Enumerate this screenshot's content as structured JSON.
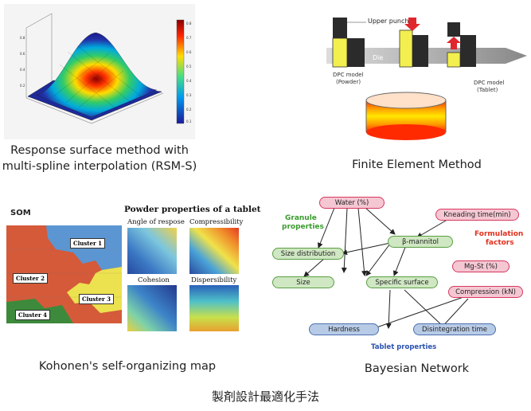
{
  "panels": {
    "rsm": {
      "caption_line1": "Response surface method with",
      "caption_line2": "multi-spline interpolation (RSM-S)"
    },
    "fem": {
      "caption": "Finite Element Method",
      "upper_punch": "Upper punch",
      "die": "Die",
      "dpc_powder_1": "DPC model",
      "dpc_powder_2": "(Powder)",
      "dpc_tablet_1": "DPC model",
      "dpc_tablet_2": "(Tablet)"
    },
    "som": {
      "title": "SOM",
      "caption": "Kohonen's self-organizing map",
      "clusters": [
        "Cluster 1",
        "Cluster 2",
        "Cluster 3",
        "Cluster 4"
      ],
      "powder_title": "Powder properties of a tablet",
      "maps": [
        "Angle of respose",
        "Compressibility",
        "Cohesion",
        "Dispersibility"
      ]
    },
    "bayes": {
      "caption": "Bayesian Network",
      "granule_1": "Granule",
      "granule_2": "properties",
      "formulation_1": "Formulation",
      "formulation_2": "factors",
      "tablet_props": "Tablet properties",
      "nodes": {
        "water": "Water (%)",
        "kneading": "Kneading time(min)",
        "mannitol": "β-mannitol",
        "size_dist": "Size distribution",
        "mgst": "Mg-St (%)",
        "size": "Size",
        "specific_surface": "Specific surface",
        "compression": "Compression (kN)",
        "hardness": "Hardness",
        "disintegration": "Disintegration time"
      }
    }
  },
  "footer_title": "製剤設計最適化手法",
  "colors": {
    "pink_fill": "#f4c7d3",
    "green_fill": "#cfe7c2",
    "blue_fill": "#b8cbe6",
    "granule_text": "#3a9b2e",
    "formulation_text": "#e0301e",
    "tablet_text": "#2a52b0"
  }
}
